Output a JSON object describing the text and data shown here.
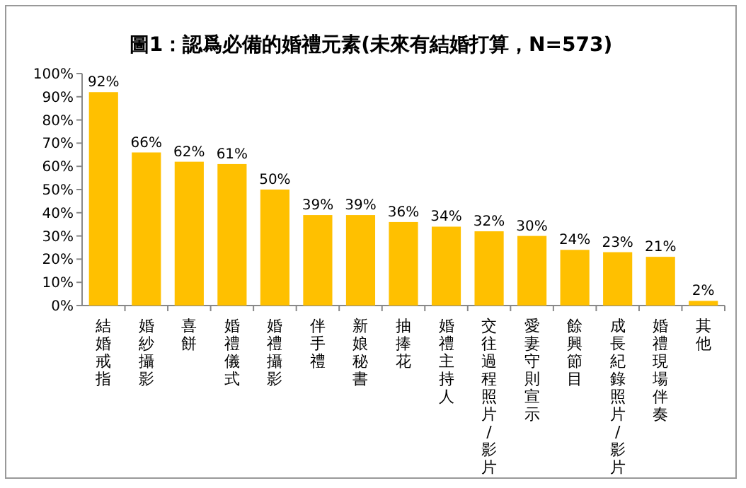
{
  "chart_data": {
    "type": "bar",
    "title": "圖1：認爲必備的婚禮元素(未來有結婚打算，N=573)",
    "categories": [
      "結婚戒指",
      "婚紗攝影",
      "喜餅",
      "婚禮儀式",
      "婚禮攝影",
      "伴手禮",
      "新娘秘書",
      "抽捧花",
      "婚禮主持人",
      "交往過程照片/影片",
      "愛妻守則宣示",
      "餘興節目",
      "成長紀錄照片/影片",
      "婚禮現場伴奏",
      "其他"
    ],
    "values": [
      92,
      66,
      62,
      61,
      50,
      39,
      39,
      36,
      34,
      32,
      30,
      24,
      23,
      21,
      2
    ],
    "value_labels": [
      "92%",
      "66%",
      "62%",
      "61%",
      "50%",
      "39%",
      "39%",
      "36%",
      "34%",
      "32%",
      "30%",
      "24%",
      "23%",
      "21%",
      "2%"
    ],
    "color": "#ffc000",
    "grid": false,
    "ylim": [
      0,
      100
    ],
    "yticks": [
      {
        "value": 0,
        "label": "0%"
      },
      {
        "value": 10,
        "label": "10%"
      },
      {
        "value": 20,
        "label": "20%"
      },
      {
        "value": 30,
        "label": "30%"
      },
      {
        "value": 40,
        "label": "40%"
      },
      {
        "value": 50,
        "label": "50%"
      },
      {
        "value": 60,
        "label": "60%"
      },
      {
        "value": 70,
        "label": "70%"
      },
      {
        "value": 80,
        "label": "80%"
      },
      {
        "value": 90,
        "label": "90%"
      },
      {
        "value": 100,
        "label": "100%"
      }
    ]
  }
}
